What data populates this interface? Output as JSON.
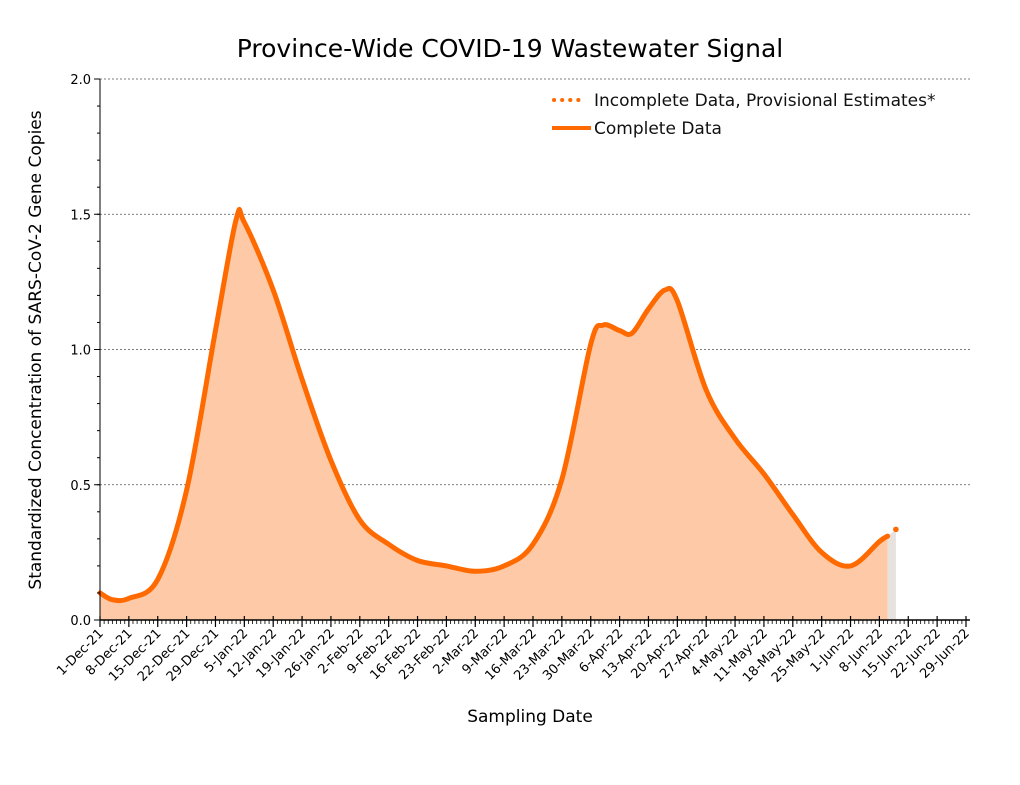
{
  "chart_data": {
    "type": "area",
    "title": "Province-Wide COVID-19 Wastewater Signal",
    "xlabel": "Sampling Date",
    "ylabel": "Standardized Concentration of SARS-CoV-2 Gene Copies",
    "ylim": [
      0,
      2.0
    ],
    "yticks": [
      "0.0",
      "0.5",
      "1.0",
      "1.5",
      "2.0"
    ],
    "xlim": [
      "2021-12-01",
      "2022-06-29"
    ],
    "xticks": [
      "1-Dec-21",
      "8-Dec-21",
      "15-Dec-21",
      "22-Dec-21",
      "29-Dec-21",
      "5-Jan-22",
      "12-Jan-22",
      "19-Jan-22",
      "26-Jan-22",
      "2-Feb-22",
      "9-Feb-22",
      "16-Feb-22",
      "23-Feb-22",
      "2-Mar-22",
      "9-Mar-22",
      "16-Mar-22",
      "23-Mar-22",
      "30-Mar-22",
      "6-Apr-22",
      "13-Apr-22",
      "20-Apr-22",
      "27-Apr-22",
      "4-May-22",
      "11-May-22",
      "18-May-22",
      "25-May-22",
      "1-Jun-22",
      "8-Jun-22",
      "15-Jun-22",
      "22-Jun-22",
      "29-Jun-22"
    ],
    "grid": "horizontal dashed",
    "legend_position": "top-right",
    "colors": {
      "line": "#ff6a00",
      "fill": "#fdc9a6",
      "provisional_fill": "#e8e2de"
    },
    "series": [
      {
        "name": "Complete Data",
        "style": "solid",
        "points": [
          [
            "2021-12-01",
            0.1
          ],
          [
            "2021-12-04",
            0.075
          ],
          [
            "2021-12-08",
            0.08
          ],
          [
            "2021-12-15",
            0.15
          ],
          [
            "2021-12-22",
            0.48
          ],
          [
            "2021-12-29",
            1.07
          ],
          [
            "2022-01-03",
            1.48
          ],
          [
            "2022-01-05",
            1.47
          ],
          [
            "2022-01-12",
            1.22
          ],
          [
            "2022-01-19",
            0.89
          ],
          [
            "2022-01-26",
            0.59
          ],
          [
            "2022-02-02",
            0.37
          ],
          [
            "2022-02-09",
            0.28
          ],
          [
            "2022-02-16",
            0.22
          ],
          [
            "2022-02-23",
            0.2
          ],
          [
            "2022-03-02",
            0.18
          ],
          [
            "2022-03-09",
            0.2
          ],
          [
            "2022-03-16",
            0.28
          ],
          [
            "2022-03-23",
            0.52
          ],
          [
            "2022-03-30",
            1.02
          ],
          [
            "2022-04-02",
            1.09
          ],
          [
            "2022-04-06",
            1.07
          ],
          [
            "2022-04-09",
            1.06
          ],
          [
            "2022-04-13",
            1.15
          ],
          [
            "2022-04-17",
            1.22
          ],
          [
            "2022-04-20",
            1.18
          ],
          [
            "2022-04-27",
            0.85
          ],
          [
            "2022-05-04",
            0.67
          ],
          [
            "2022-05-11",
            0.54
          ],
          [
            "2022-05-18",
            0.39
          ],
          [
            "2022-05-25",
            0.25
          ],
          [
            "2022-06-01",
            0.2
          ],
          [
            "2022-06-08",
            0.29
          ],
          [
            "2022-06-10",
            0.31
          ]
        ]
      },
      {
        "name": "Incomplete Data, Provisional Estimates*",
        "style": "dotted",
        "points": [
          [
            "2022-06-10",
            0.31
          ],
          [
            "2022-06-12",
            0.335
          ]
        ]
      }
    ]
  }
}
